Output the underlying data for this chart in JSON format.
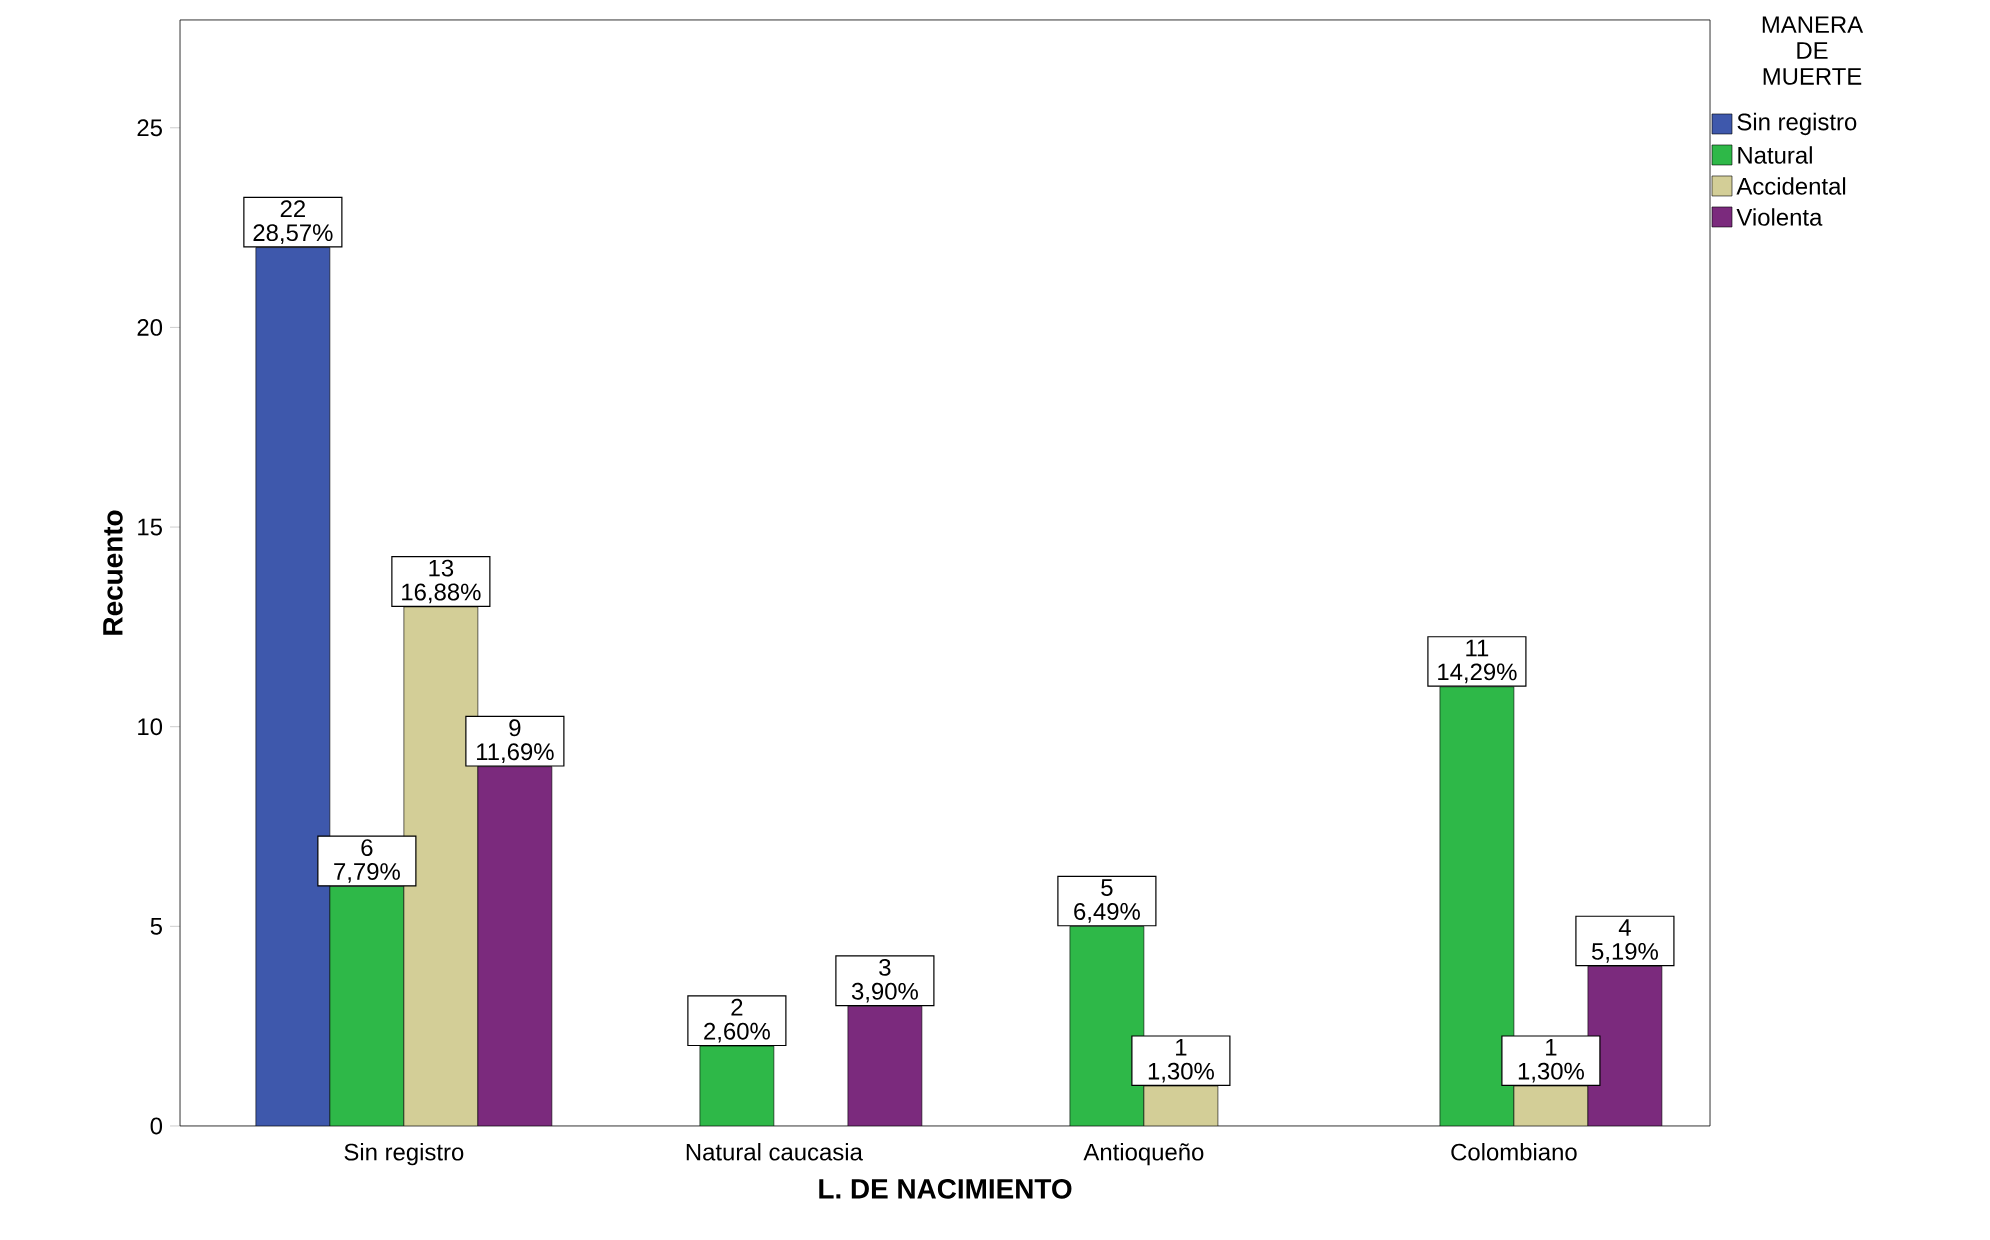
{
  "chart_data": {
    "type": "bar",
    "xlabel": "L. DE NACIMIENTO",
    "ylabel": "Recuento",
    "legend_title": "MANERA DE MUERTE",
    "legend": "top right",
    "categories": [
      "Sin registro",
      "Natural caucasia",
      "Antioqueño",
      "Colombiano"
    ],
    "ylim": [
      0,
      27.7
    ],
    "yticks": [
      0,
      5,
      10,
      15,
      20,
      25
    ],
    "series": [
      {
        "name": "Sin registro",
        "color": "#3e58ac",
        "values": [
          22,
          null,
          null,
          null
        ],
        "value_labels": [
          "22 28,57%",
          null,
          null,
          null
        ]
      },
      {
        "name": "Natural",
        "color": "#2eb848",
        "values": [
          6,
          2,
          5,
          11
        ],
        "value_labels": [
          "6 7,79%",
          "2 2,60%",
          "5 6,49%",
          "11 14,29%"
        ]
      },
      {
        "name": "Accidental",
        "color": "#d3ce97",
        "values": [
          13,
          null,
          1,
          1
        ],
        "value_labels": [
          "13 16,88%",
          null,
          "1 1,30%",
          "1 1,30%"
        ]
      },
      {
        "name": "Violenta",
        "color": "#7b2a7d",
        "values": [
          9,
          3,
          null,
          4
        ],
        "value_labels": [
          "9 11,69%",
          "3 3,90%",
          null,
          "4 5,19%"
        ]
      }
    ]
  }
}
